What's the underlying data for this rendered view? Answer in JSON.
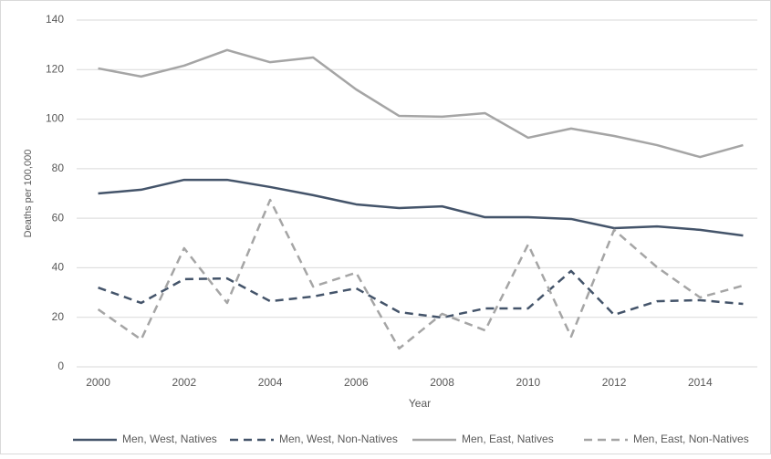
{
  "chart_data": {
    "type": "line",
    "x": [
      2000,
      2001,
      2002,
      2003,
      2004,
      2005,
      2006,
      2007,
      2008,
      2009,
      2010,
      2011,
      2012,
      2013,
      2014,
      2015
    ],
    "xlim": [
      1999.5,
      2015.5
    ],
    "xticks": [
      2000,
      2002,
      2004,
      2006,
      2008,
      2010,
      2012,
      2014
    ],
    "ylim": [
      0,
      140
    ],
    "yticks": [
      0,
      20,
      40,
      60,
      80,
      100,
      120,
      140
    ],
    "xlabel": "Year",
    "ylabel": "Deaths per 100,000",
    "grid": true,
    "legend": "bottom",
    "series": [
      {
        "name": "Men, West, Natives",
        "color": "#44546a",
        "dash": "solid",
        "values": [
          70,
          71.5,
          75.5,
          75.5,
          72.6,
          69.3,
          65.6,
          64.1,
          64.8,
          60.4,
          60.4,
          59.7,
          56,
          56.7,
          55.3,
          53
        ]
      },
      {
        "name": "Men, West, Non-Natives",
        "color": "#44546a",
        "dash": "dashed",
        "values": [
          32,
          25.8,
          35.4,
          35.7,
          26.5,
          28.4,
          31.7,
          22.1,
          19.9,
          23.6,
          23.6,
          38.7,
          21,
          26.5,
          26.9,
          25.4
        ]
      },
      {
        "name": "Men, East, Natives",
        "color": "#a5a5a5",
        "dash": "solid",
        "values": [
          120.5,
          117.2,
          121.6,
          127.9,
          123,
          124.9,
          112,
          101.3,
          101,
          102.4,
          92.5,
          96.2,
          93.2,
          89.5,
          84.7,
          89.5
        ]
      },
      {
        "name": "Men, East, Non-Natives",
        "color": "#a5a5a5",
        "dash": "dashed",
        "values": [
          23.2,
          11,
          47.9,
          25.8,
          67.4,
          32.4,
          38,
          7.4,
          21.4,
          14.7,
          49.4,
          12.2,
          55.3,
          40.2,
          28,
          32.8
        ]
      }
    ]
  }
}
